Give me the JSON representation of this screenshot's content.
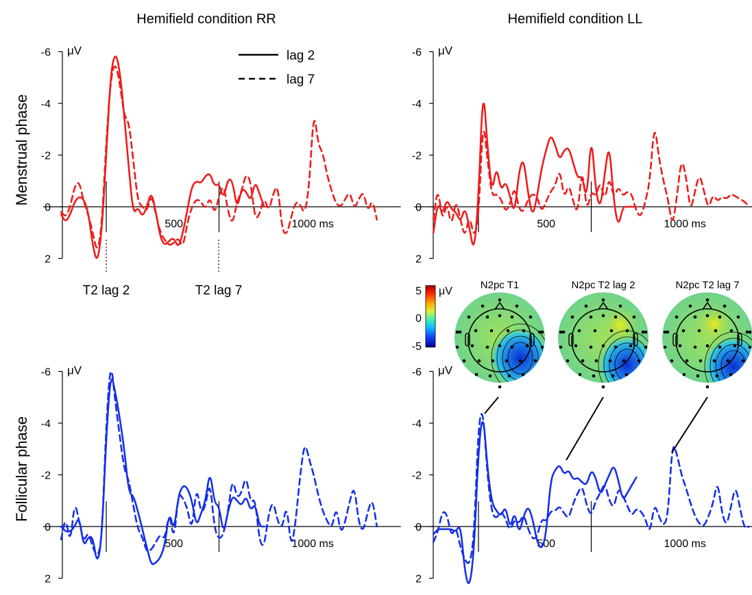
{
  "figure": {
    "columns": [
      "Hemifield condition RR",
      "Hemifield condition LL"
    ],
    "rows": [
      "Menstrual phase",
      "Follicular phase"
    ],
    "unit": "μV",
    "legend": [
      {
        "label": "lag 2",
        "style": "solid"
      },
      {
        "label": "lag 7",
        "style": "dashed"
      }
    ],
    "event_markers": [
      {
        "label": "T2 lag 2",
        "time_ms": 200
      },
      {
        "label": "T2 lag 7",
        "time_ms": 700
      }
    ],
    "colors": {
      "menstrual": "#ee1c1c",
      "follicular": "#1530e8",
      "axis": "#000000"
    },
    "topomaps": {
      "titles": [
        "N2pc T1",
        "N2pc T2 lag 2",
        "N2pc T2 lag 7"
      ],
      "colorbar": {
        "ticks": [
          "5",
          "0",
          "-5"
        ],
        "unit": "μV",
        "range": [
          -5,
          5
        ],
        "colormap": "jet"
      }
    }
  },
  "chart_data": [
    {
      "type": "line",
      "panel": "Menstrual phase / Hemifield condition RR",
      "y_ticks": [
        "-6",
        "-4",
        "-2",
        "0",
        "2"
      ],
      "x_ticks": [
        "500",
        "1000 ms"
      ],
      "xlim": [
        -100,
        1300
      ],
      "ylim": [
        2,
        -6
      ],
      "y_axis_inverted": true,
      "series": [
        {
          "name": "lag 2",
          "style": "solid",
          "x": [
            -100,
            -80,
            -60,
            -40,
            -20,
            0,
            20,
            40,
            60,
            80,
            100,
            120,
            140,
            160,
            180,
            200,
            220,
            240,
            260,
            280,
            300,
            320,
            340,
            360,
            380,
            400,
            420,
            440,
            460,
            480,
            500,
            520,
            540,
            560,
            580,
            600,
            620,
            640,
            660,
            680,
            700,
            720,
            740,
            760,
            780,
            800
          ],
          "y": [
            0.3,
            0.6,
            0.3,
            -0.2,
            -0.4,
            -0.3,
            0.2,
            1.5,
            2.2,
            1.0,
            -2.0,
            -5.2,
            -6.0,
            -5.3,
            -3.5,
            -1.5,
            0.3,
            0.0,
            0.4,
            0.0,
            -0.6,
            0.2,
            1.2,
            1.5,
            1.3,
            1.2,
            1.6,
            1.0,
            0.1,
            -0.8,
            -1.0,
            -0.9,
            -1.2,
            -1.3,
            -0.8,
            -0.9,
            -0.3,
            -1.1,
            -1.0,
            0.1,
            -0.7,
            -0.6,
            -0.2,
            -1.0,
            -0.5,
            0.0
          ]
        },
        {
          "name": "lag 7",
          "style": "dashed",
          "x": [
            -100,
            -80,
            -60,
            -40,
            -20,
            0,
            20,
            40,
            60,
            80,
            100,
            120,
            140,
            160,
            180,
            200,
            220,
            240,
            260,
            280,
            300,
            320,
            340,
            360,
            380,
            400,
            420,
            440,
            460,
            480,
            500,
            520,
            540,
            560,
            580,
            600,
            620,
            640,
            660,
            680,
            700,
            720,
            740,
            760,
            780,
            800,
            820,
            840,
            860,
            880,
            900,
            920,
            940,
            960,
            980,
            1000,
            1020,
            1040,
            1060,
            1080,
            1100,
            1120,
            1140,
            1160,
            1180,
            1200,
            1220,
            1240,
            1260,
            1280,
            1300
          ],
          "y": [
            0.2,
            0.4,
            0.0,
            -0.8,
            -1.0,
            -0.2,
            0.3,
            1.0,
            1.8,
            0.8,
            -2.5,
            -5.0,
            -5.6,
            -4.8,
            -3.5,
            -3.3,
            -1.8,
            -0.2,
            0.0,
            0.2,
            -0.5,
            0.3,
            1.0,
            1.3,
            1.5,
            1.4,
            1.2,
            1.6,
            0.6,
            0.0,
            -0.3,
            -0.2,
            0.1,
            -0.4,
            0.3,
            -0.4,
            -0.9,
            0.2,
            0.7,
            -0.2,
            -0.6,
            -1.3,
            -1.0,
            0.5,
            0.3,
            -0.4,
            0.2,
            -0.5,
            -0.9,
            0.9,
            1.1,
            0.4,
            -0.2,
            -0.1,
            0.3,
            -0.8,
            -3.8,
            -2.4,
            -2.1,
            -1.2,
            -0.6,
            -0.1,
            0.0,
            -0.3,
            -0.6,
            0.1,
            -0.3,
            -0.6,
            0.2,
            -0.3,
            0.5
          ]
        }
      ]
    },
    {
      "type": "line",
      "panel": "Menstrual phase / Hemifield condition LL",
      "y_ticks": [
        "-6",
        "-4",
        "-2",
        "0",
        "2"
      ],
      "x_ticks": [
        "500",
        "1000 ms"
      ],
      "xlim": [
        -100,
        1300
      ],
      "ylim": [
        2,
        -6
      ],
      "y_axis_inverted": true,
      "series": [
        {
          "name": "lag 2",
          "style": "solid",
          "x": [
            -100,
            -80,
            -60,
            -40,
            -20,
            0,
            20,
            40,
            60,
            80,
            100,
            120,
            140,
            160,
            180,
            200,
            220,
            240,
            260,
            280,
            300,
            320,
            340,
            360,
            380,
            400,
            420,
            440,
            460,
            480,
            500,
            520,
            540,
            560,
            580,
            600,
            620,
            640,
            660,
            680,
            700,
            720,
            740,
            760,
            780,
            800
          ],
          "y": [
            1.0,
            -0.2,
            0.3,
            -0.3,
            0.1,
            0.2,
            0.6,
            0.0,
            0.8,
            1.8,
            -0.3,
            -4.8,
            -2.3,
            -0.5,
            -1.6,
            -0.6,
            -1.0,
            -0.4,
            0.3,
            -1.4,
            -1.9,
            -0.5,
            0.4,
            -0.4,
            -1.5,
            -2.2,
            -2.8,
            -2.4,
            -1.8,
            -2.2,
            -2.3,
            -1.7,
            -1.1,
            -1.2,
            -0.2,
            -2.9,
            -0.6,
            0.1,
            -1.3,
            -2.5,
            -0.2,
            0.8,
            0.0,
            0.0,
            0.0,
            0.0
          ]
        },
        {
          "name": "lag 7",
          "style": "dashed",
          "x": [
            -100,
            -80,
            -60,
            -40,
            -20,
            0,
            20,
            40,
            60,
            80,
            100,
            120,
            140,
            160,
            180,
            200,
            220,
            240,
            260,
            280,
            300,
            320,
            340,
            360,
            380,
            400,
            420,
            440,
            460,
            480,
            500,
            520,
            540,
            560,
            580,
            600,
            620,
            640,
            660,
            680,
            700,
            720,
            740,
            760,
            780,
            800,
            820,
            840,
            860,
            880,
            900,
            920,
            940,
            960,
            980,
            1000,
            1020,
            1040,
            1060,
            1080,
            1100,
            1120,
            1140,
            1160,
            1180,
            1200,
            1220,
            1240,
            1260,
            1280,
            1300
          ],
          "y": [
            0.5,
            -0.8,
            0.6,
            -0.2,
            0.8,
            -0.3,
            0.5,
            1.2,
            0.3,
            1.2,
            0.5,
            -3.5,
            -1.8,
            -0.4,
            -0.5,
            -0.3,
            0.2,
            -0.1,
            -0.8,
            0.1,
            0.2,
            -0.3,
            -0.5,
            -0.4,
            0.2,
            -0.2,
            -0.6,
            -0.8,
            -1.5,
            -0.3,
            -0.9,
            -0.2,
            0.3,
            -1.6,
            0.2,
            -0.6,
            -0.4,
            -1.0,
            -0.2,
            -1.2,
            -0.3,
            -0.8,
            -0.4,
            -0.6,
            -0.5,
            0.2,
            0.4,
            -0.2,
            -1.0,
            -3.3,
            -1.9,
            -1.0,
            -0.3,
            0.8,
            -0.4,
            -1.9,
            -1.2,
            0.2,
            -0.6,
            -1.3,
            -0.6,
            0.1,
            -0.5,
            -0.2,
            -0.4,
            -0.3,
            -0.5,
            -0.4,
            -0.3,
            -0.2,
            0.0
          ]
        }
      ]
    },
    {
      "type": "line",
      "panel": "Follicular phase / Hemifield condition RR",
      "y_ticks": [
        "-6",
        "-4",
        "-2",
        "0",
        "2"
      ],
      "x_ticks": [
        "500",
        "1000 ms"
      ],
      "xlim": [
        -100,
        1300
      ],
      "ylim": [
        2,
        -6
      ],
      "y_axis_inverted": true,
      "series": [
        {
          "name": "lag 2",
          "style": "solid",
          "x": [
            -100,
            -80,
            -60,
            -40,
            -20,
            0,
            20,
            40,
            60,
            80,
            100,
            120,
            140,
            160,
            180,
            200,
            220,
            240,
            260,
            280,
            300,
            320,
            340,
            360,
            380,
            400,
            420,
            440,
            460,
            480,
            500,
            520,
            540,
            560,
            580,
            600,
            620,
            640,
            660,
            680,
            700,
            720,
            740,
            760,
            780,
            800
          ],
          "y": [
            0.0,
            0.2,
            0.2,
            0.0,
            -0.4,
            0.8,
            0.4,
            0.4,
            1.5,
            0.5,
            -3.5,
            -6.0,
            -5.2,
            -4.2,
            -3.0,
            -1.3,
            -1.2,
            -0.6,
            0.1,
            0.8,
            1.5,
            1.4,
            1.2,
            0.7,
            -0.6,
            0.2,
            -1.2,
            -1.6,
            -1.5,
            -1.0,
            0.0,
            -0.5,
            -1.0,
            -2.2,
            -0.9,
            -0.8,
            0.3,
            -0.6,
            -1.2,
            -1.0,
            -0.8,
            -1.2,
            -0.6,
            -0.9,
            0.0,
            0.0
          ]
        },
        {
          "name": "lag 7",
          "style": "dashed",
          "x": [
            -100,
            -80,
            -60,
            -40,
            -20,
            0,
            20,
            40,
            60,
            80,
            100,
            120,
            140,
            160,
            180,
            200,
            220,
            240,
            260,
            280,
            300,
            320,
            340,
            360,
            380,
            400,
            420,
            440,
            460,
            480,
            500,
            520,
            540,
            560,
            580,
            600,
            620,
            640,
            660,
            680,
            700,
            720,
            740,
            760,
            780,
            800,
            820,
            840,
            860,
            880,
            900,
            920,
            940,
            960,
            980,
            1000,
            1020,
            1040,
            1060,
            1080,
            1100,
            1120,
            1140,
            1160,
            1180,
            1200,
            1220,
            1240,
            1260,
            1280,
            1300
          ],
          "y": [
            0.5,
            -0.4,
            0.7,
            -1.0,
            -0.2,
            0.6,
            0.2,
            0.8,
            1.2,
            0.6,
            -4.0,
            -6.5,
            -4.8,
            -3.5,
            -2.2,
            -1.8,
            -0.8,
            0.1,
            0.4,
            1.0,
            0.9,
            0.6,
            0.3,
            0.5,
            -0.6,
            0.6,
            -1.3,
            -1.1,
            -0.7,
            0.2,
            -1.6,
            -0.5,
            -0.8,
            -1.8,
            0.1,
            0.5,
            0.3,
            -0.6,
            -1.9,
            -1.1,
            -1.3,
            -2.0,
            -0.9,
            -1.1,
            0.6,
            0.8,
            -0.5,
            -1.0,
            -0.2,
            0.1,
            -0.9,
            0.9,
            -0.2,
            -2.0,
            -3.3,
            -2.6,
            -2.0,
            -1.2,
            -0.6,
            -0.2,
            0.1,
            -0.8,
            0.3,
            -0.2,
            -1.0,
            -1.6,
            -0.1,
            0.2,
            -0.6,
            -1.1,
            0.0
          ]
        }
      ]
    },
    {
      "type": "line",
      "panel": "Follicular phase / Hemifield condition LL",
      "y_ticks": [
        "-6",
        "-4",
        "-2",
        "0",
        "2"
      ],
      "x_ticks": [
        "500",
        "1000 ms"
      ],
      "xlim": [
        -100,
        1300
      ],
      "ylim": [
        2,
        -6
      ],
      "y_axis_inverted": true,
      "series": [
        {
          "name": "lag 2",
          "style": "solid",
          "x": [
            -100,
            -80,
            -60,
            -40,
            -20,
            0,
            20,
            40,
            60,
            80,
            100,
            120,
            140,
            160,
            180,
            200,
            220,
            240,
            260,
            280,
            300,
            320,
            340,
            360,
            380,
            400,
            420,
            440,
            460,
            480,
            500,
            520,
            540,
            560,
            580,
            600,
            620,
            640,
            660,
            680,
            700,
            720,
            740,
            760,
            780,
            800
          ],
          "y": [
            0.3,
            0.1,
            0.1,
            0.1,
            0.1,
            0.2,
            -0.1,
            1.8,
            2.4,
            1.0,
            -3.0,
            -4.5,
            -2.2,
            -0.9,
            -0.6,
            -0.4,
            -0.8,
            0.1,
            -0.6,
            0.3,
            -0.4,
            -0.8,
            -0.3,
            0.6,
            0.9,
            0.3,
            -1.8,
            -2.2,
            -2.4,
            -2.0,
            -2.2,
            -1.8,
            -1.9,
            -1.7,
            -1.6,
            -2.2,
            -1.9,
            -1.2,
            -1.6,
            -2.0,
            -2.4,
            -1.8,
            -1.0,
            -1.3,
            -1.6,
            -1.9
          ]
        },
        {
          "name": "lag 7",
          "style": "dashed",
          "x": [
            -100,
            -80,
            -60,
            -40,
            -20,
            0,
            20,
            40,
            60,
            80,
            100,
            120,
            140,
            160,
            180,
            200,
            220,
            240,
            260,
            280,
            300,
            320,
            340,
            360,
            380,
            400,
            420,
            440,
            460,
            480,
            500,
            520,
            540,
            560,
            580,
            600,
            620,
            640,
            660,
            680,
            700,
            720,
            740,
            760,
            780,
            800,
            820,
            840,
            860,
            880,
            900,
            920,
            940,
            960,
            980,
            1000,
            1020,
            1040,
            1060,
            1080,
            1100,
            1120,
            1140,
            1160,
            1180,
            1200,
            1220,
            1240,
            1260,
            1280,
            1300
          ],
          "y": [
            0.6,
            0.2,
            -0.6,
            -0.5,
            0.4,
            0.0,
            0.8,
            1.3,
            1.5,
            0.5,
            -4.0,
            -4.6,
            -1.9,
            -0.5,
            -0.3,
            -0.6,
            -0.3,
            0.2,
            -0.3,
            -0.1,
            -0.5,
            0.1,
            0.5,
            0.4,
            -0.3,
            -0.2,
            -0.6,
            -0.6,
            -0.8,
            -0.5,
            -0.3,
            -0.9,
            -1.3,
            -1.6,
            -0.8,
            -0.4,
            -1.0,
            -1.3,
            -1.7,
            -1.0,
            -0.7,
            -1.5,
            -1.2,
            -0.8,
            -0.4,
            -0.7,
            -0.6,
            -0.3,
            0.3,
            -0.9,
            -0.4,
            0.0,
            -0.4,
            -3.3,
            -2.8,
            -2.0,
            -1.5,
            -0.9,
            -0.4,
            -0.1,
            0.0,
            -0.4,
            -0.9,
            -1.8,
            -0.5,
            0.0,
            -0.8,
            -1.6,
            -0.7,
            0.1,
            0.0
          ]
        }
      ]
    }
  ]
}
